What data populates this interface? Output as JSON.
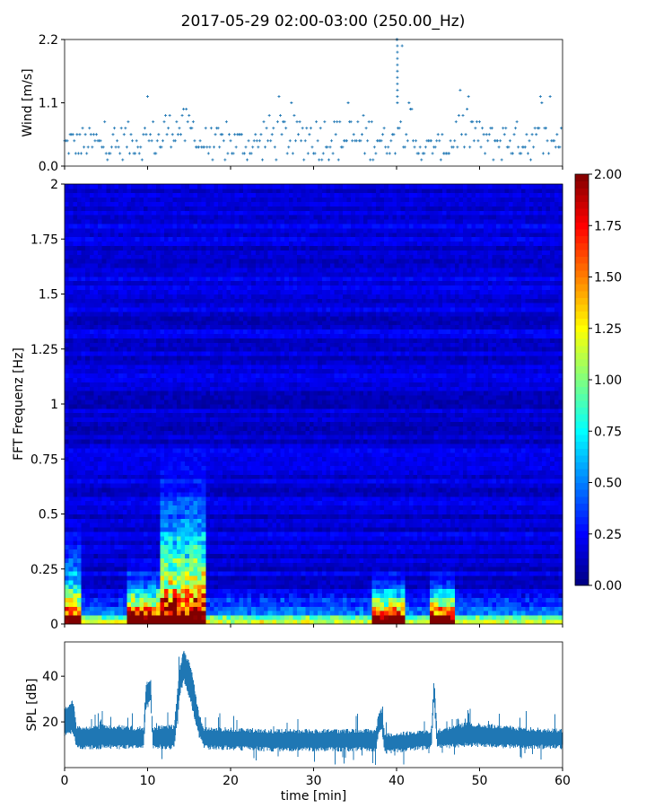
{
  "title": "2017-05-29 02:00-03:00 (250.00_Hz)",
  "colors": {
    "series": "#1f77b4",
    "colormap": "jet",
    "axes": "#000000"
  },
  "chart_data": [
    {
      "type": "scatter",
      "panel": "wind",
      "ylabel": "Wind [m/s]",
      "xlim": [
        0,
        60
      ],
      "ylim": [
        0,
        2.2
      ],
      "yticks": [
        0.0,
        1.1,
        2.2
      ],
      "ytick_labels": [
        "0.0",
        "1.1",
        "2.2"
      ],
      "quantization_step": 0.11,
      "marker": "+",
      "x_spacing_min": 0.1667,
      "series_segments": [
        {
          "x_start": 0,
          "x_end": 7,
          "y_range": [
            0.11,
            0.66
          ],
          "peak": 0.77
        },
        {
          "x_start": 7,
          "x_end": 12,
          "y_range": [
            0.11,
            0.77
          ],
          "peak": 1.21
        },
        {
          "x_start": 12,
          "x_end": 16,
          "y_range": [
            0.33,
            0.99
          ],
          "peak": 1.1
        },
        {
          "x_start": 16,
          "x_end": 24,
          "y_range": [
            0.11,
            0.66
          ],
          "peak": 0.88
        },
        {
          "x_start": 24,
          "x_end": 38,
          "y_range": [
            0.11,
            0.88
          ],
          "peak": 1.21
        },
        {
          "x_start": 38,
          "x_end": 40,
          "y_range": [
            0.22,
            0.66
          ],
          "peak": 0.77
        },
        {
          "x_start": 40,
          "x_end": 42,
          "y_range": [
            0.33,
            1.1
          ],
          "peak": 2.2
        },
        {
          "x_start": 42,
          "x_end": 47,
          "y_range": [
            0.11,
            0.55
          ],
          "peak": 0.77
        },
        {
          "x_start": 47,
          "x_end": 50,
          "y_range": [
            0.22,
            0.99
          ],
          "peak": 1.32
        },
        {
          "x_start": 50,
          "x_end": 60,
          "y_range": [
            0.11,
            0.77
          ],
          "peak": 1.21
        }
      ]
    },
    {
      "type": "heatmap",
      "panel": "spectrogram",
      "ylabel": "FFT Frequenz [Hz]",
      "xlim": [
        0,
        60
      ],
      "ylim": [
        0,
        2
      ],
      "yticks": [
        0,
        0.25,
        0.5,
        0.75,
        1,
        1.25,
        1.5,
        1.75,
        2
      ],
      "ytick_labels": [
        "0",
        "0.25",
        "0.5",
        "0.75",
        "1",
        "1.25",
        "1.5",
        "1.75",
        "2"
      ],
      "colorbar": {
        "vmin": 0.0,
        "vmax": 2.0,
        "ticks": [
          0.0,
          0.25,
          0.5,
          0.75,
          1.0,
          1.25,
          1.5,
          1.75,
          2.0
        ],
        "tick_labels": [
          "0.00",
          "0.25",
          "0.50",
          "0.75",
          "1.00",
          "1.25",
          "1.50",
          "1.75",
          "2.00"
        ]
      },
      "background_level": 0.18,
      "low_frequency_bands": [
        {
          "f_max": 0.05,
          "level": 0.6
        },
        {
          "f_max": 0.15,
          "level": 0.3
        }
      ],
      "activity_events": [
        {
          "t_start": 7.5,
          "t_end": 11.5,
          "f_max": 0.35,
          "level_at_base": 1.9
        },
        {
          "t_start": 11.5,
          "t_end": 17,
          "f_max": 0.9,
          "level_at_base": 2.0
        },
        {
          "t_start": 37,
          "t_end": 41,
          "f_max": 0.3,
          "level_at_base": 2.0
        },
        {
          "t_start": 44,
          "t_end": 47,
          "f_max": 0.3,
          "level_at_base": 2.0
        },
        {
          "t_start": 0,
          "t_end": 2,
          "f_max": 0.55,
          "level_at_base": 1.6
        }
      ]
    },
    {
      "type": "area",
      "panel": "spl",
      "ylabel": "SPL [dB]",
      "xlabel": "time [min]",
      "xlim": [
        0,
        60
      ],
      "ylim": [
        0,
        55
      ],
      "xticks": [
        0,
        10,
        20,
        30,
        40,
        50,
        60
      ],
      "xtick_labels": [
        "0",
        "10",
        "20",
        "30",
        "40",
        "50",
        "60"
      ],
      "yticks": [
        20,
        40
      ],
      "ytick_labels": [
        "20",
        "40"
      ],
      "envelope": [
        {
          "x": 0,
          "low": 15,
          "high": 25
        },
        {
          "x": 1,
          "low": 17,
          "high": 28
        },
        {
          "x": 1.5,
          "low": 10,
          "high": 16
        },
        {
          "x": 5,
          "low": 10,
          "high": 17
        },
        {
          "x": 9.5,
          "low": 10,
          "high": 16
        },
        {
          "x": 9.8,
          "low": 27,
          "high": 35
        },
        {
          "x": 10.4,
          "low": 31,
          "high": 38
        },
        {
          "x": 10.6,
          "low": 10,
          "high": 16
        },
        {
          "x": 13.2,
          "low": 10,
          "high": 17
        },
        {
          "x": 13.8,
          "low": 30,
          "high": 41
        },
        {
          "x": 14.3,
          "low": 40,
          "high": 50
        },
        {
          "x": 15.2,
          "low": 30,
          "high": 43
        },
        {
          "x": 16.2,
          "low": 15,
          "high": 22
        },
        {
          "x": 16.8,
          "low": 10,
          "high": 16
        },
        {
          "x": 25,
          "low": 9,
          "high": 15
        },
        {
          "x": 37.5,
          "low": 9,
          "high": 15
        },
        {
          "x": 37.8,
          "low": 16,
          "high": 22
        },
        {
          "x": 38.2,
          "low": 18,
          "high": 24
        },
        {
          "x": 38.6,
          "low": 8,
          "high": 13
        },
        {
          "x": 44.2,
          "low": 10,
          "high": 15
        },
        {
          "x": 44.5,
          "low": 30,
          "high": 37
        },
        {
          "x": 44.9,
          "low": 10,
          "high": 15
        },
        {
          "x": 48.5,
          "low": 11,
          "high": 18
        },
        {
          "x": 55,
          "low": 10,
          "high": 16
        },
        {
          "x": 60,
          "low": 10,
          "high": 15
        }
      ]
    }
  ]
}
